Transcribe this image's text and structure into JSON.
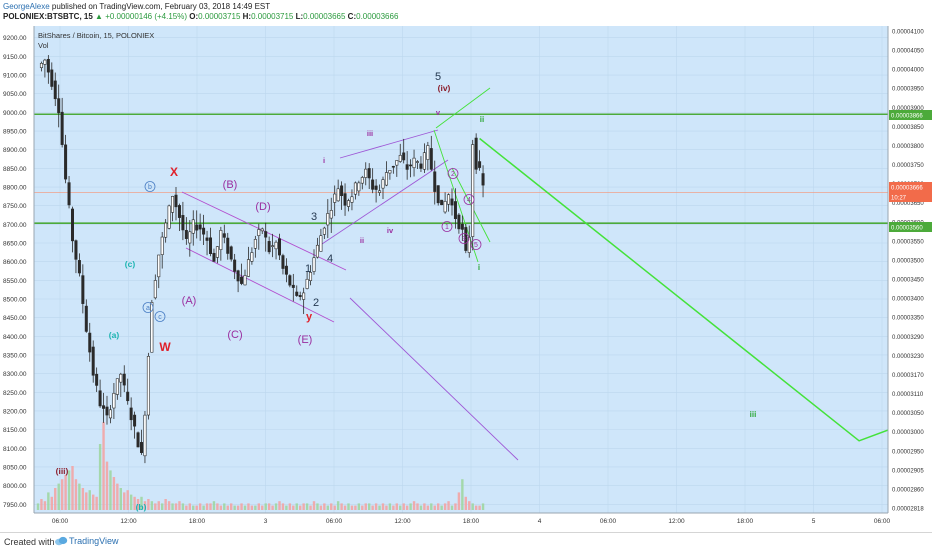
{
  "header": {
    "author": "GeorgeAlexe",
    "published": " published on TradingView.com, February 03, 2018 14:49 EST",
    "symbol": "POLONIEX:BTSBTC, 15",
    "change_arrow": "▲",
    "change": "+0.00000146 (+4.15%)",
    "o_label": "O:",
    "o_value": "0.00003715",
    "h_label": "H:",
    "h_value": "0.00003715",
    "l_label": "L:",
    "l_value": "0.00003665",
    "c_label": "C:",
    "c_value": "0.00003666",
    "price_value": "0.00003666"
  },
  "legend": {
    "series": "BitShares / Bitcoin, 15, POLONIEX",
    "volume": "Vol"
  },
  "colors": {
    "background": "#cfe6fa",
    "up_candle": "#2a2a2a",
    "down_candle": "#2a2a2a",
    "volume_up": "#9fd6a2",
    "volume_down": "#f2a4a4",
    "hline": "#4caa3a",
    "projection": "#44e23a",
    "triangle": "#b24fcf",
    "channel": "#9e58d6",
    "label_red": "#e0202a",
    "label_purple": "#9a2fa0",
    "label_teal": "#1cb3b0",
    "label_green": "#2fa83a",
    "label_blue": "#4a7ec4",
    "label_dark": "#263a52",
    "label_maroon": "#8a1c2a"
  },
  "footer": {
    "created_with": "Created with",
    "brand": "TradingView"
  },
  "chart_data": {
    "type": "candlestick",
    "title": "BitShares / Bitcoin, 15, POLONIEX",
    "left_axis": {
      "ticks": [
        "9200.00",
        "9150.00",
        "9100.00",
        "9050.00",
        "9000.00",
        "8950.00",
        "8900.00",
        "8850.00",
        "8800.00",
        "8750.00",
        "8700.00",
        "8650.00",
        "8600.00",
        "8550.00",
        "8500.00",
        "8450.00",
        "8400.00",
        "8350.00",
        "8300.00",
        "8250.00",
        "8200.00",
        "8150.00",
        "8100.00",
        "8050.00",
        "8000.00",
        "7950.00"
      ],
      "range": [
        7940,
        9210
      ]
    },
    "right_axis": {
      "ticks": [
        "0.00004100",
        "0.00004050",
        "0.00004000",
        "0.00003950",
        "0.00003900",
        "0.00003850",
        "0.00003800",
        "0.00003750",
        "0.00003700",
        "0.00003650",
        "0.00003600",
        "0.00003550",
        "0.00003500",
        "0.00003450",
        "0.00003400",
        "0.00003350",
        "0.00003290",
        "0.00003230",
        "0.00003170",
        "0.00003110",
        "0.00003050",
        "0.00003000",
        "0.00002950",
        "0.00002905",
        "0.00002860",
        "0.00002818"
      ],
      "price_tags": [
        "0.00003866",
        "0.00003666",
        "10:27",
        "0.00003560"
      ]
    },
    "x_ticks": [
      "06:00",
      "12:00",
      "18:00",
      "3",
      "06:00",
      "12:00",
      "18:00",
      "4",
      "06:00",
      "12:00",
      "18:00",
      "5",
      "06:00"
    ],
    "horizontal_levels": [
      {
        "price_tag": "0.00003866",
        "left_value": 8995
      },
      {
        "price_tag": "0.00003560",
        "left_value": 8703
      }
    ],
    "current_price_line": {
      "left_value": 8785
    },
    "price_path": [
      [
        0,
        9120
      ],
      [
        2,
        9140
      ],
      [
        4,
        9080
      ],
      [
        6,
        9010
      ],
      [
        8,
        8820
      ],
      [
        10,
        8660
      ],
      [
        12,
        8560
      ],
      [
        14,
        8420
      ],
      [
        16,
        8300
      ],
      [
        18,
        8220
      ],
      [
        20,
        8180
      ],
      [
        22,
        8250
      ],
      [
        24,
        8300
      ],
      [
        26,
        8220
      ],
      [
        28,
        8150
      ],
      [
        30,
        8080
      ],
      [
        31,
        8200
      ],
      [
        33,
        8500
      ],
      [
        35,
        8620
      ],
      [
        37,
        8700
      ],
      [
        39,
        8780
      ],
      [
        41,
        8720
      ],
      [
        43,
        8650
      ],
      [
        45,
        8700
      ],
      [
        47,
        8690
      ],
      [
        49,
        8660
      ],
      [
        51,
        8600
      ],
      [
        53,
        8680
      ],
      [
        55,
        8630
      ],
      [
        57,
        8580
      ],
      [
        59,
        8540
      ],
      [
        61,
        8600
      ],
      [
        63,
        8660
      ],
      [
        65,
        8690
      ],
      [
        67,
        8630
      ],
      [
        69,
        8650
      ],
      [
        71,
        8580
      ],
      [
        73,
        8540
      ],
      [
        75,
        8500
      ],
      [
        77,
        8520
      ],
      [
        79,
        8580
      ],
      [
        81,
        8640
      ],
      [
        83,
        8700
      ],
      [
        85,
        8750
      ],
      [
        87,
        8800
      ],
      [
        89,
        8760
      ],
      [
        91,
        8780
      ],
      [
        93,
        8820
      ],
      [
        95,
        8840
      ],
      [
        97,
        8800
      ],
      [
        99,
        8790
      ],
      [
        101,
        8840
      ],
      [
        103,
        8860
      ],
      [
        105,
        8880
      ],
      [
        107,
        8850
      ],
      [
        109,
        8870
      ],
      [
        111,
        8860
      ],
      [
        113,
        8900
      ],
      [
        115,
        8800
      ],
      [
        117,
        8740
      ],
      [
        119,
        8780
      ],
      [
        121,
        8720
      ],
      [
        123,
        8680
      ],
      [
        124,
        8620
      ],
      [
        125,
        8670
      ],
      [
        126,
        8920
      ],
      [
        127,
        8860
      ],
      [
        128,
        8840
      ],
      [
        129,
        8800
      ]
    ],
    "volume_bars": [
      3,
      5,
      4,
      8,
      6,
      10,
      12,
      14,
      16,
      18,
      20,
      14,
      12,
      10,
      8,
      9,
      7,
      6,
      30,
      40,
      22,
      18,
      15,
      12,
      10,
      8,
      9,
      7,
      6,
      5,
      6,
      4,
      5,
      4,
      3,
      4,
      3,
      5,
      4,
      3,
      3,
      4,
      3,
      2,
      3,
      2,
      2,
      3,
      2,
      3,
      3,
      4,
      3,
      2,
      3,
      2,
      3,
      2,
      2,
      3,
      2,
      3,
      2,
      2,
      3,
      2,
      3,
      3,
      2,
      3,
      4,
      3,
      2,
      3,
      2,
      3,
      2,
      3,
      3,
      2,
      4,
      3,
      2,
      3,
      2,
      3,
      2,
      4,
      3,
      2,
      3,
      2,
      2,
      3,
      2,
      3,
      3,
      2,
      3,
      2,
      3,
      2,
      3,
      2,
      3,
      2,
      3,
      2,
      3,
      4,
      3,
      2,
      3,
      2,
      3,
      2,
      3,
      2,
      3,
      4,
      2,
      3,
      8,
      14,
      6,
      4,
      3,
      2,
      2,
      3
    ],
    "wave_labels": [
      "(iii)",
      "(a)",
      "(b)",
      "(c)",
      "a",
      "b",
      "c",
      "W",
      "X",
      "(A)",
      "(B)",
      "(C)",
      "(D)",
      "(E)",
      "y",
      "1",
      "2",
      "3",
      "4",
      "5",
      "(iv)",
      "i",
      "ii",
      "iii",
      "iv",
      "v",
      "1",
      "2",
      "3",
      "4",
      "5",
      "i",
      "ii",
      "iii",
      "y",
      "v"
    ],
    "projection_path": [
      {
        "time_index": 128,
        "value": 8930
      },
      {
        "time_index": 238,
        "value": 8120
      },
      {
        "time_index": 270,
        "value": 8230
      }
    ]
  }
}
